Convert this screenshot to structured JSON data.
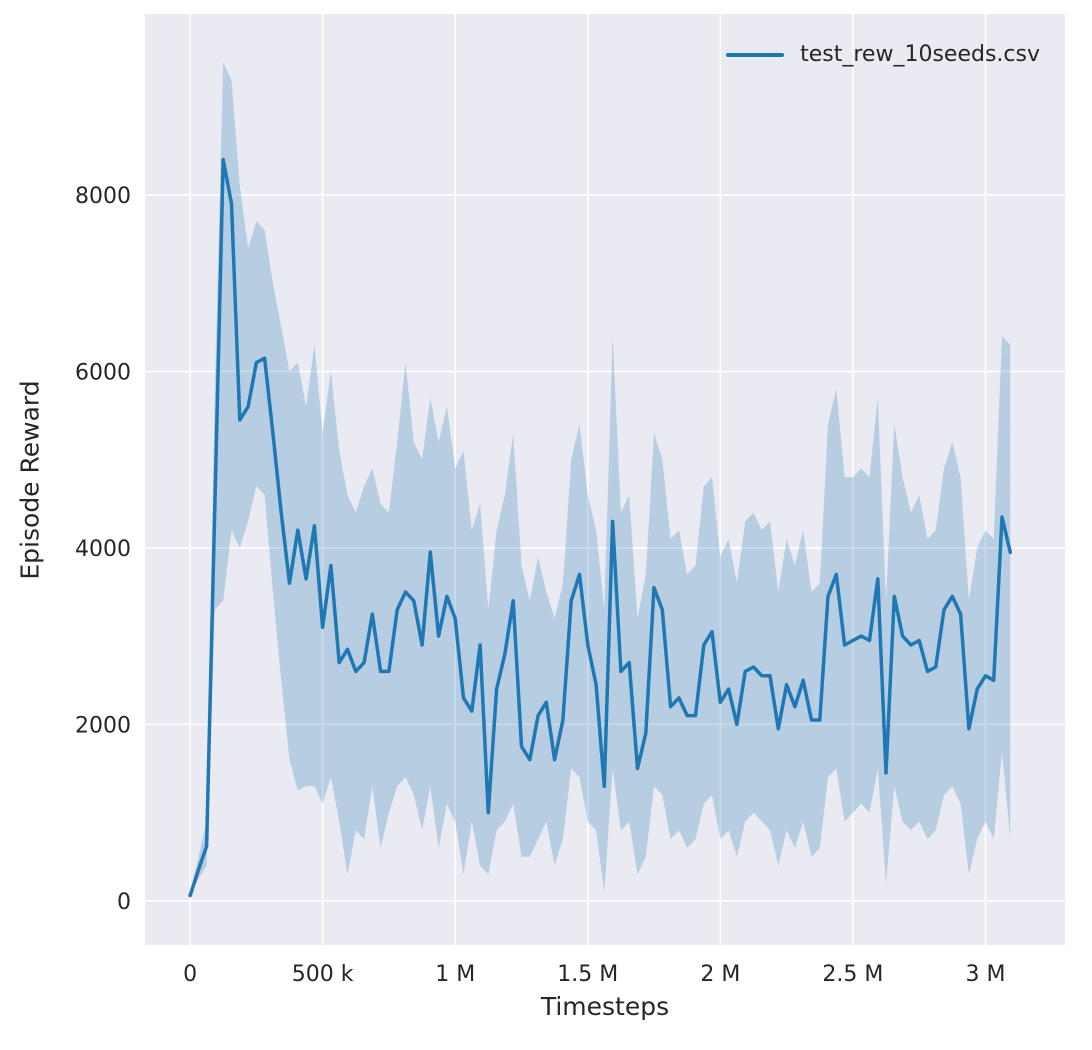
{
  "chart_data": {
    "type": "line",
    "title": "",
    "xlabel": "Timesteps",
    "ylabel": "Episode Reward",
    "legend": {
      "position": "upper right",
      "entries": [
        "test_rew_10seeds.csv"
      ]
    },
    "grid": true,
    "background": "#eaeaf2",
    "grid_color": "#ffffff",
    "text_color": "#262626",
    "band_opacity": 0.25,
    "xlim": [
      -170000,
      3300000
    ],
    "ylim": [
      -500,
      10050
    ],
    "xticks": [
      {
        "value": 0,
        "label": "0"
      },
      {
        "value": 500000,
        "label": "500 k"
      },
      {
        "value": 1000000,
        "label": "1 M"
      },
      {
        "value": 1500000,
        "label": "1.5 M"
      },
      {
        "value": 2000000,
        "label": "2 M"
      },
      {
        "value": 2500000,
        "label": "2.5 M"
      },
      {
        "value": 3000000,
        "label": "3 M"
      }
    ],
    "yticks": [
      {
        "value": 0,
        "label": "0"
      },
      {
        "value": 2000,
        "label": "2000"
      },
      {
        "value": 4000,
        "label": "4000"
      },
      {
        "value": 6000,
        "label": "6000"
      },
      {
        "value": 8000,
        "label": "8000"
      }
    ],
    "x_start": 0,
    "x_step": 31250,
    "series": [
      {
        "name": "test_rew_10seeds.csv",
        "color": "#1f77b4",
        "mean": [
          60,
          350,
          620,
          4500,
          8400,
          7900,
          5450,
          5600,
          6100,
          6150,
          5300,
          4400,
          3600,
          4200,
          3650,
          4250,
          3100,
          3800,
          2700,
          2850,
          2600,
          2700,
          3250,
          2600,
          2600,
          3300,
          3500,
          3400,
          2900,
          3950,
          3000,
          3450,
          3200,
          2300,
          2150,
          2900,
          1000,
          2400,
          2800,
          3400,
          1750,
          1600,
          2100,
          2250,
          1600,
          2050,
          3400,
          3700,
          2900,
          2450,
          1300,
          4300,
          2600,
          2700,
          1500,
          1900,
          3550,
          3300,
          2200,
          2300,
          2100,
          2100,
          2900,
          3050,
          2250,
          2400,
          2000,
          2600,
          2650,
          2550,
          2550,
          1950,
          2450,
          2200,
          2500,
          2050,
          2050,
          3450,
          3700,
          2900,
          2950,
          3000,
          2950,
          3650,
          1450,
          3450,
          3000,
          2900,
          2950,
          2600,
          2650,
          3300,
          3450,
          3250,
          1950,
          2400,
          2550,
          2500,
          4350,
          3950
        ],
        "band_lower": [
          40,
          250,
          400,
          3300,
          3400,
          4200,
          4000,
          4300,
          4700,
          4600,
          3500,
          2500,
          1600,
          1250,
          1300,
          1300,
          1100,
          1400,
          900,
          300,
          800,
          700,
          1300,
          600,
          1000,
          1300,
          1400,
          1200,
          800,
          1300,
          600,
          1100,
          900,
          300,
          900,
          400,
          300,
          800,
          900,
          1100,
          500,
          500,
          700,
          900,
          400,
          700,
          1500,
          1400,
          900,
          800,
          100,
          1500,
          800,
          900,
          300,
          500,
          1300,
          1200,
          700,
          800,
          600,
          700,
          1100,
          1200,
          700,
          800,
          500,
          900,
          1000,
          900,
          800,
          400,
          800,
          600,
          900,
          500,
          600,
          1400,
          1500,
          900,
          1000,
          1100,
          1000,
          1500,
          200,
          1300,
          900,
          800,
          900,
          700,
          800,
          1200,
          1300,
          1100,
          300,
          700,
          900,
          700,
          1700,
          700
        ],
        "band_upper": [
          90,
          500,
          900,
          5800,
          9500,
          9300,
          8100,
          7400,
          7700,
          7600,
          7000,
          6500,
          6000,
          6100,
          5600,
          6300,
          5300,
          6000,
          5100,
          4600,
          4400,
          4700,
          4900,
          4500,
          4400,
          5200,
          6100,
          5200,
          5000,
          5700,
          5200,
          5600,
          4900,
          5100,
          4200,
          4500,
          3300,
          4200,
          4600,
          5300,
          3800,
          3400,
          3900,
          3500,
          3200,
          3600,
          5000,
          5400,
          4600,
          4200,
          3300,
          6400,
          4400,
          4600,
          3200,
          3700,
          5300,
          5000,
          4100,
          4200,
          3700,
          3800,
          4700,
          4800,
          3900,
          4100,
          3600,
          4300,
          4400,
          4200,
          4300,
          3500,
          4100,
          3800,
          4200,
          3500,
          3600,
          5400,
          5800,
          4800,
          4800,
          4900,
          4800,
          5700,
          3400,
          5400,
          4800,
          4400,
          4600,
          4100,
          4200,
          4900,
          5200,
          4800,
          3400,
          4000,
          4200,
          4100,
          6400,
          6300
        ]
      }
    ]
  }
}
